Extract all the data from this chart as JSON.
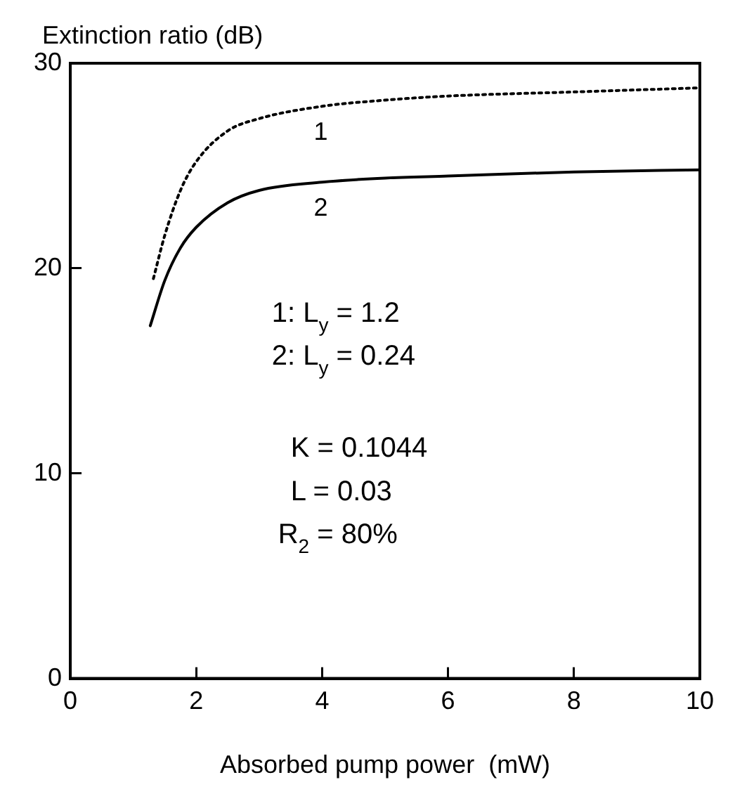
{
  "chart_data": {
    "type": "line",
    "xlabel": "Absorbed pump power  (mW)",
    "ylabel": "Extinction ratio (dB)",
    "xlim": [
      0,
      10
    ],
    "xticks": [
      0,
      2,
      4,
      6,
      8,
      10
    ],
    "ylim": [
      0,
      30
    ],
    "yticks": [
      0,
      10,
      20,
      30
    ],
    "grid": false,
    "legend": false,
    "marker": "none",
    "series": [
      {
        "name": "1",
        "color": "#000000",
        "line_style": "dotted",
        "x": [
          1.32,
          1.5,
          1.75,
          2,
          2.5,
          3,
          4,
          5,
          6,
          8,
          10
        ],
        "values": [
          19.5,
          21.6,
          23.8,
          25.2,
          26.7,
          27.3,
          27.9,
          28.2,
          28.4,
          28.6,
          28.8
        ]
      },
      {
        "name": "2",
        "color": "#000000",
        "line_style": "solid",
        "x": [
          1.27,
          1.5,
          1.75,
          2,
          2.5,
          3,
          4,
          5,
          6,
          8,
          10
        ],
        "values": [
          17.2,
          19.4,
          21,
          22,
          23.2,
          23.8,
          24.2,
          24.4,
          24.5,
          24.7,
          24.8
        ]
      }
    ],
    "annotations": [
      "1: L$_{y}$ = 1.2",
      "2: L$_{y}$ = 0.24",
      "K = 0.1044",
      "L = 0.03",
      "R$_{2}$ = 80%"
    ]
  }
}
